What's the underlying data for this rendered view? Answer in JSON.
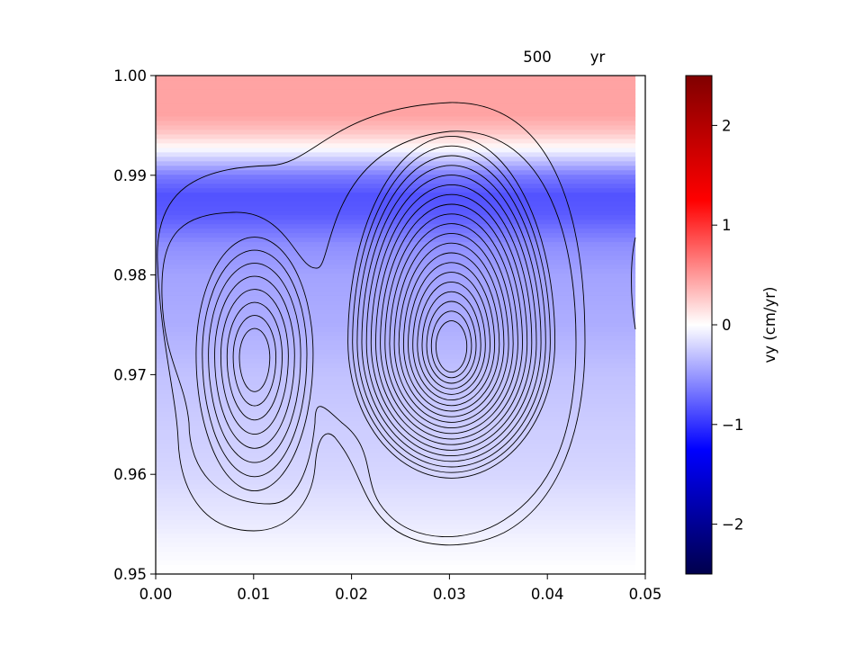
{
  "chart_data": {
    "type": "heatmap",
    "title_value": "500",
    "title_unit": "yr",
    "xlim": [
      0.0,
      0.05
    ],
    "ylim": [
      0.95,
      1.0
    ],
    "x_ticks": [
      0.0,
      0.01,
      0.02,
      0.03,
      0.04,
      0.05
    ],
    "x_tick_labels": [
      "0.00",
      "0.01",
      "0.02",
      "0.03",
      "0.04",
      "0.05"
    ],
    "y_ticks": [
      0.95,
      0.96,
      0.97,
      0.98,
      0.99,
      1.0
    ],
    "y_tick_labels": [
      "0.95",
      "0.96",
      "0.97",
      "0.98",
      "0.99",
      "1.00"
    ],
    "heatmap_extent": {
      "x": [
        0.0,
        0.049
      ],
      "y": [
        0.9505,
        1.0
      ]
    },
    "heatmap_profile_y": [
      0.9505,
      0.953,
      0.956,
      0.96,
      0.965,
      0.97,
      0.975,
      0.98,
      0.983,
      0.986,
      0.988,
      0.99,
      0.9915,
      0.993,
      0.9945,
      0.996,
      1.0
    ],
    "heatmap_profile_vy": [
      0.0,
      -0.05,
      -0.12,
      -0.2,
      -0.25,
      -0.3,
      -0.4,
      -0.45,
      -0.55,
      -0.8,
      -0.85,
      -0.65,
      -0.3,
      0.05,
      0.3,
      0.45,
      0.45
    ],
    "colorbar": {
      "label": "vy (cm/yr)",
      "range": [
        -2.5,
        2.5
      ],
      "ticks": [
        -2,
        -1,
        0,
        1,
        2
      ],
      "tick_labels": [
        "−2",
        "−1",
        "0",
        "1",
        "2"
      ],
      "colormap": "seismic",
      "colors": {
        "low": "#00004c",
        "mid_low": "#0000ff",
        "center": "#ffffff",
        "mid_high": "#ff0000",
        "high": "#800000"
      }
    },
    "contours": {
      "color": "#000000",
      "cells": [
        {
          "center": [
            0.0101,
            0.9717
          ],
          "levels": 8
        },
        {
          "center": [
            0.0302,
            0.9728
          ],
          "levels": 20
        }
      ]
    }
  }
}
